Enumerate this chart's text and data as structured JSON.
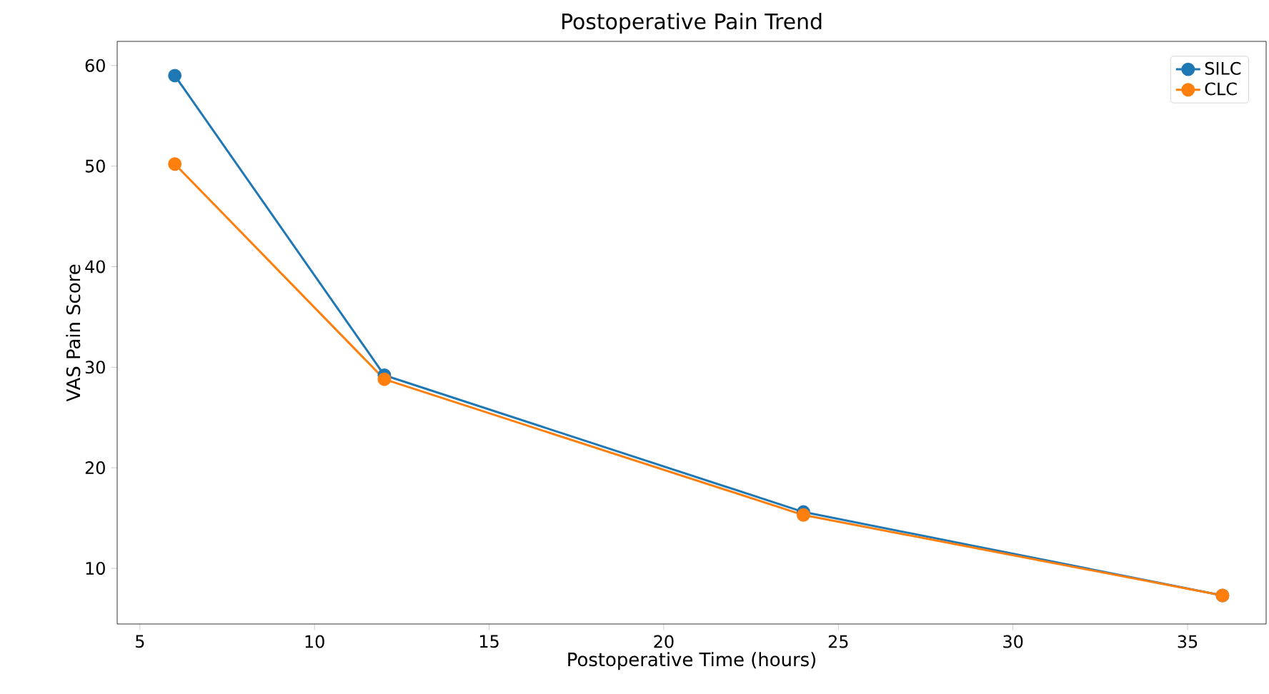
{
  "chart_data": {
    "type": "line",
    "title": "Postoperative Pain Trend",
    "xlabel": "Postoperative Time (hours)",
    "ylabel": "VAS Pain Score",
    "x": [
      6,
      12,
      24,
      36
    ],
    "series": [
      {
        "name": "SILC",
        "color": "#1f77b4",
        "values": [
          59,
          29.2,
          15.6,
          7.3
        ]
      },
      {
        "name": "CLC",
        "color": "#ff7f0e",
        "values": [
          50.2,
          28.8,
          15.3,
          7.3
        ]
      }
    ],
    "xlim": [
      4.35,
      37.25
    ],
    "ylim": [
      4.46,
      62.4
    ],
    "xticks": [
      5,
      10,
      15,
      20,
      25,
      30,
      35
    ],
    "yticks": [
      10,
      20,
      30,
      40,
      50,
      60
    ],
    "legend": "top right",
    "marker": "circle",
    "line_style": "solid",
    "grid": false
  }
}
